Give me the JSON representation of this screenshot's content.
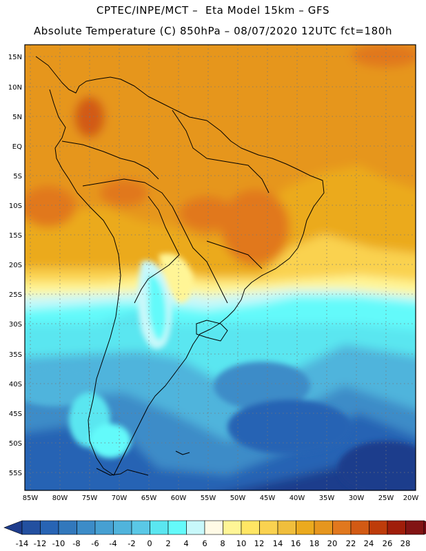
{
  "header": {
    "line1": "CPTEC/INPE/MCT –  Eta Model 15km – GFS",
    "line2": "Absolute Temperature (C) 850hPa – 08/07/2020 12UTC fct=180h"
  },
  "map": {
    "region": "South America",
    "lat_labels": [
      "15N",
      "10N",
      "5N",
      "EQ",
      "5S",
      "10S",
      "15S",
      "20S",
      "25S",
      "30S",
      "35S",
      "40S",
      "45S",
      "50S",
      "55S"
    ],
    "lon_labels": [
      "85W",
      "80W",
      "75W",
      "70W",
      "65W",
      "60W",
      "55W",
      "50W",
      "45W",
      "40W",
      "35W",
      "30W",
      "25W",
      "20W"
    ]
  },
  "colorbar": {
    "labels": [
      "-14",
      "-12",
      "-10",
      "-8",
      "-6",
      "-4",
      "-2",
      "0",
      "2",
      "4",
      "6",
      "8",
      "10",
      "12",
      "14",
      "16",
      "18",
      "20",
      "22",
      "24",
      "26",
      "28"
    ],
    "colors": [
      "#1e3c8c",
      "#2350a0",
      "#2864b4",
      "#3278bc",
      "#3c8cc8",
      "#46a0d2",
      "#50b4dc",
      "#5ac8e6",
      "#5ae6f0",
      "#64fafa",
      "#c8f8fa",
      "#fffae6",
      "#fff596",
      "#ffe664",
      "#fad250",
      "#f0be3c",
      "#ebaa1e",
      "#e6961e",
      "#e1781e",
      "#d25a14",
      "#be3c0a",
      "#a01e0a",
      "#821414",
      "#780a14"
    ]
  }
}
